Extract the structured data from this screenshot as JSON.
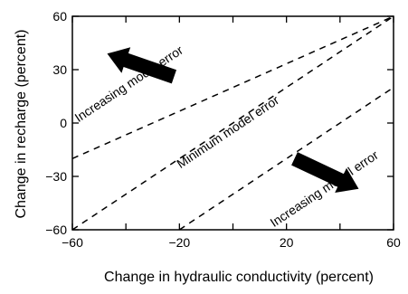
{
  "chart_data": {
    "type": "line",
    "xlabel": "Change in hydraulic conductivity (percent)",
    "ylabel": "Change in recharge (percent)",
    "xlim": [
      -60,
      60
    ],
    "ylim": [
      -60,
      60
    ],
    "x_ticks": [
      -60,
      -20,
      20,
      60
    ],
    "x_minor_ticks": [
      -40,
      0,
      40
    ],
    "y_ticks": [
      -60,
      -30,
      0,
      30,
      60
    ],
    "grid": false,
    "legend": "none",
    "series": [
      {
        "x": [
          -60,
          60
        ],
        "y": [
          -20,
          60
        ],
        "style": "dashed"
      },
      {
        "x": [
          -60,
          60
        ],
        "y": [
          -60,
          60
        ],
        "style": "dashed"
      },
      {
        "x": [
          -20,
          60
        ],
        "y": [
          -60,
          20
        ],
        "style": "dashed"
      }
    ],
    "annotations": [
      {
        "text": "Increasing model error",
        "x": -38,
        "y": 20,
        "angle": -33.7
      },
      {
        "text": "Minimum model error",
        "x": -1,
        "y": -7,
        "angle": -33.7
      },
      {
        "text": "Increasing model error",
        "x": 35,
        "y": -39,
        "angle": -33.7
      }
    ],
    "arrows": [
      {
        "direction": "up-left",
        "from": [
          -22,
          26
        ],
        "to": [
          -47,
          39
        ]
      },
      {
        "direction": "down-right",
        "from": [
          23,
          -20
        ],
        "to": [
          47,
          -37
        ]
      }
    ],
    "line_color": "#000000"
  }
}
